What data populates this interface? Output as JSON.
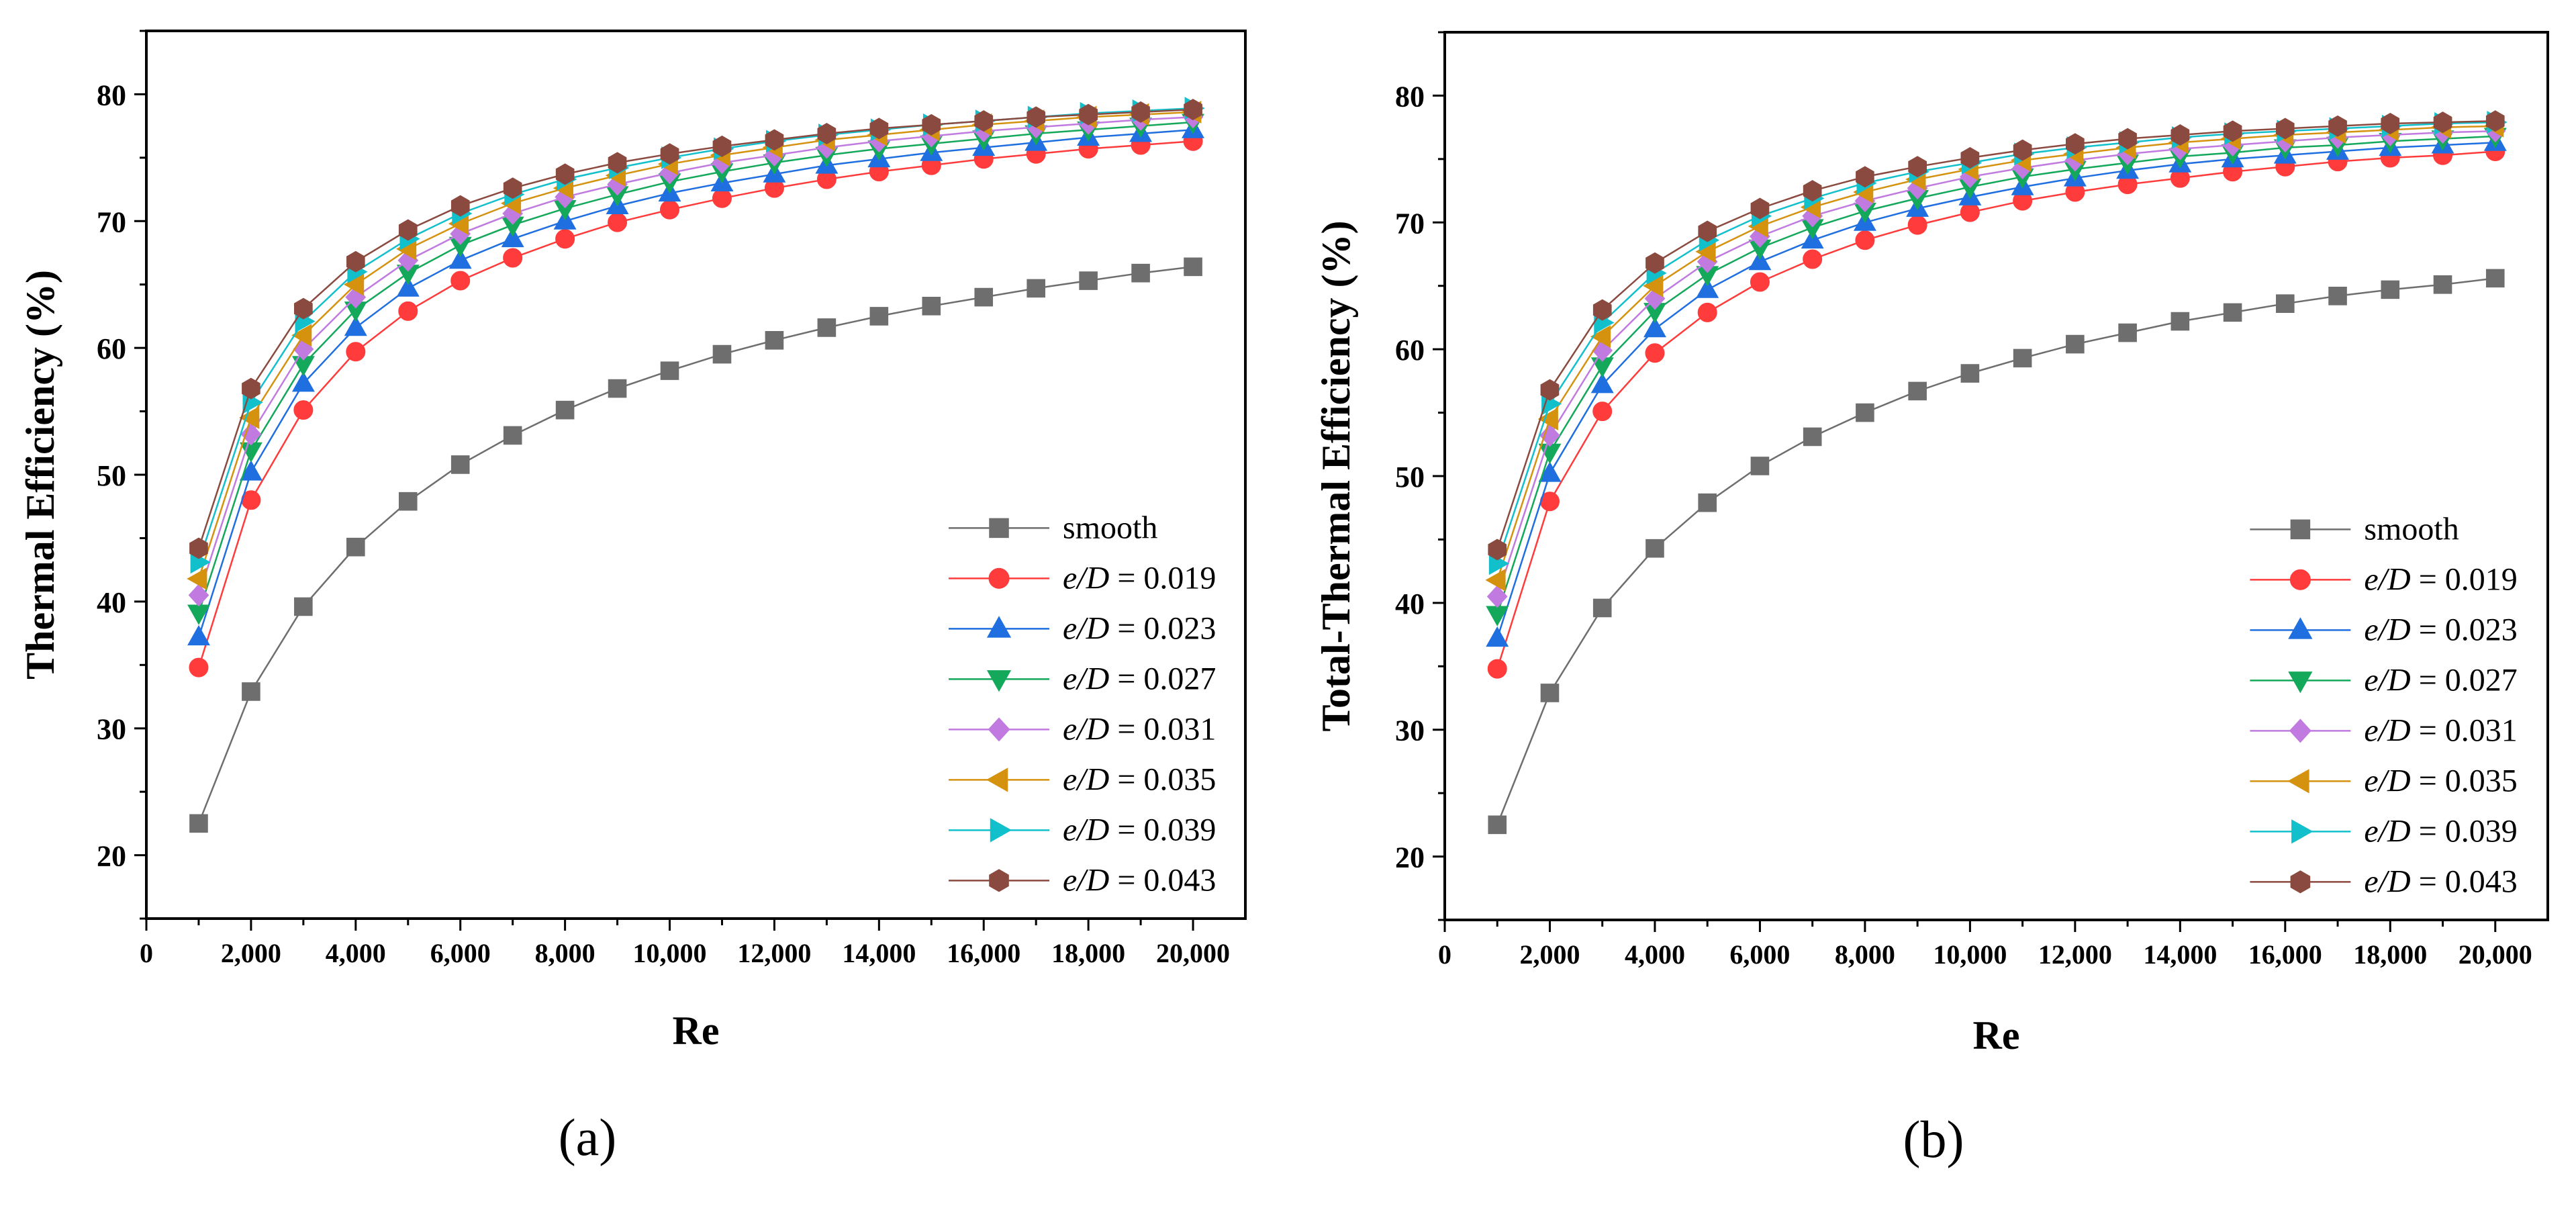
{
  "figure": {
    "panels": [
      "(a)",
      "(b)"
    ]
  },
  "chart_data": [
    {
      "type": "line",
      "panel_label": "(a)",
      "xlabel": "Re",
      "ylabel": "Thermal Efficiency (%)",
      "xlim": [
        0,
        21000
      ],
      "ylim": [
        15,
        85
      ],
      "xticks": [
        0,
        2000,
        4000,
        6000,
        8000,
        10000,
        12000,
        14000,
        16000,
        18000,
        20000
      ],
      "xtick_labels": [
        "0",
        "2,000",
        "4,000",
        "6,000",
        "8,000",
        "10,000",
        "12,000",
        "14,000",
        "16,000",
        "18,000",
        "20,000"
      ],
      "yticks": [
        20,
        30,
        40,
        50,
        60,
        70,
        80
      ],
      "ytick_labels": [
        "20",
        "30",
        "40",
        "50",
        "60",
        "70",
        "80"
      ],
      "grid": false,
      "legend_position": "bottom-right",
      "x": [
        1000,
        2000,
        3000,
        4000,
        5000,
        6000,
        7000,
        8000,
        9000,
        10000,
        11000,
        12000,
        13000,
        14000,
        15000,
        16000,
        17000,
        18000,
        19000,
        20000
      ],
      "series": [
        {
          "name": "smooth",
          "prefix": "smooth",
          "value": "",
          "color": "#6e6e6e",
          "marker": "square",
          "values": [
            22.5,
            32.9,
            39.6,
            44.3,
            47.9,
            50.8,
            53.1,
            55.1,
            56.8,
            58.2,
            59.5,
            60.6,
            61.6,
            62.5,
            63.3,
            64.0,
            64.7,
            65.3,
            65.9,
            66.4
          ]
        },
        {
          "name": "e/D = 0.019",
          "prefix": "e/D",
          "value": " = 0.019",
          "color": "#ff3b3b",
          "marker": "circle",
          "values": [
            34.8,
            48.0,
            55.1,
            59.7,
            62.9,
            65.3,
            67.1,
            68.6,
            69.9,
            70.9,
            71.8,
            72.6,
            73.3,
            73.9,
            74.4,
            74.9,
            75.3,
            75.7,
            76.0,
            76.3
          ]
        },
        {
          "name": "e/D = 0.023",
          "prefix": "e/D",
          "value": " = 0.023",
          "color": "#1f6fe0",
          "marker": "triangle-up",
          "values": [
            37.2,
            50.2,
            57.2,
            61.6,
            64.7,
            66.9,
            68.6,
            70.0,
            71.2,
            72.2,
            73.0,
            73.7,
            74.4,
            74.9,
            75.4,
            75.8,
            76.2,
            76.6,
            76.9,
            77.2
          ]
        },
        {
          "name": "e/D = 0.027",
          "prefix": "e/D",
          "value": " = 0.027",
          "color": "#14a85a",
          "marker": "triangle-down",
          "values": [
            39.1,
            51.9,
            58.7,
            63.0,
            65.9,
            68.1,
            69.7,
            71.0,
            72.1,
            73.1,
            73.9,
            74.6,
            75.2,
            75.7,
            76.1,
            76.5,
            76.9,
            77.2,
            77.5,
            77.8
          ]
        },
        {
          "name": "e/D = 0.031",
          "prefix": "e/D",
          "value": " = 0.031",
          "color": "#c07ae0",
          "marker": "diamond",
          "values": [
            40.5,
            53.2,
            59.9,
            64.0,
            66.9,
            69.0,
            70.6,
            71.9,
            72.9,
            73.8,
            74.6,
            75.2,
            75.8,
            76.3,
            76.7,
            77.1,
            77.4,
            77.7,
            78.0,
            78.2
          ]
        },
        {
          "name": "e/D = 0.035",
          "prefix": "e/D",
          "value": " = 0.035",
          "color": "#d4920f",
          "marker": "triangle-left",
          "values": [
            41.8,
            54.5,
            61.0,
            65.0,
            67.8,
            69.8,
            71.4,
            72.6,
            73.6,
            74.5,
            75.2,
            75.8,
            76.4,
            76.8,
            77.2,
            77.6,
            77.9,
            78.2,
            78.4,
            78.6
          ]
        },
        {
          "name": "e/D = 0.039",
          "prefix": "e/D",
          "value": " = 0.039",
          "color": "#12c0cc",
          "marker": "triangle-right",
          "values": [
            43.1,
            55.7,
            62.1,
            66.0,
            68.6,
            70.6,
            72.1,
            73.3,
            74.2,
            75.0,
            75.7,
            76.3,
            76.8,
            77.2,
            77.6,
            77.9,
            78.2,
            78.5,
            78.7,
            78.9
          ]
        },
        {
          "name": "e/D = 0.043",
          "prefix": "e/D",
          "value": " = 0.043",
          "color": "#8b4a3f",
          "marker": "hexagon",
          "values": [
            44.2,
            56.8,
            63.1,
            66.8,
            69.3,
            71.2,
            72.6,
            73.7,
            74.6,
            75.3,
            75.9,
            76.4,
            76.9,
            77.3,
            77.6,
            77.9,
            78.2,
            78.4,
            78.6,
            78.8
          ]
        }
      ]
    },
    {
      "type": "line",
      "panel_label": "(b)",
      "xlabel": "Re",
      "ylabel": "Total-Thermal Efficiency (%)",
      "xlim": [
        0,
        21000
      ],
      "ylim": [
        15,
        85
      ],
      "xticks": [
        0,
        2000,
        4000,
        6000,
        8000,
        10000,
        12000,
        14000,
        16000,
        18000,
        20000
      ],
      "xtick_labels": [
        "0",
        "2,000",
        "4,000",
        "6,000",
        "8,000",
        "10,000",
        "12,000",
        "14,000",
        "16,000",
        "18,000",
        "20,000"
      ],
      "yticks": [
        20,
        30,
        40,
        50,
        60,
        70,
        80
      ],
      "ytick_labels": [
        "20",
        "30",
        "40",
        "50",
        "60",
        "70",
        "80"
      ],
      "grid": false,
      "legend_position": "bottom-right",
      "x": [
        1000,
        2000,
        3000,
        4000,
        5000,
        6000,
        7000,
        8000,
        9000,
        10000,
        11000,
        12000,
        13000,
        14000,
        15000,
        16000,
        17000,
        18000,
        19000,
        20000
      ],
      "series": [
        {
          "name": "smooth",
          "prefix": "smooth",
          "value": "",
          "color": "#6e6e6e",
          "marker": "square",
          "values": [
            22.5,
            32.9,
            39.6,
            44.3,
            47.9,
            50.8,
            53.1,
            55.0,
            56.7,
            58.1,
            59.3,
            60.4,
            61.3,
            62.2,
            62.9,
            63.6,
            64.2,
            64.7,
            65.1,
            65.6
          ]
        },
        {
          "name": "e/D = 0.019",
          "prefix": "e/D",
          "value": " = 0.019",
          "color": "#ff3b3b",
          "marker": "circle",
          "values": [
            34.8,
            48.0,
            55.1,
            59.7,
            62.9,
            65.3,
            67.1,
            68.6,
            69.8,
            70.8,
            71.7,
            72.4,
            73.0,
            73.5,
            74.0,
            74.4,
            74.8,
            75.1,
            75.3,
            75.6
          ]
        },
        {
          "name": "e/D = 0.023",
          "prefix": "e/D",
          "value": " = 0.023",
          "color": "#1f6fe0",
          "marker": "triangle-up",
          "values": [
            37.2,
            50.2,
            57.2,
            61.6,
            64.7,
            66.9,
            68.6,
            70.0,
            71.1,
            72.0,
            72.8,
            73.5,
            74.1,
            74.6,
            75.0,
            75.3,
            75.6,
            75.9,
            76.1,
            76.3
          ]
        },
        {
          "name": "e/D = 0.027",
          "prefix": "e/D",
          "value": " = 0.027",
          "color": "#14a85a",
          "marker": "triangle-down",
          "values": [
            39.1,
            51.9,
            58.7,
            63.0,
            65.9,
            68.0,
            69.6,
            70.9,
            71.9,
            72.8,
            73.6,
            74.2,
            74.7,
            75.2,
            75.5,
            75.9,
            76.1,
            76.4,
            76.6,
            76.8
          ]
        },
        {
          "name": "e/D = 0.031",
          "prefix": "e/D",
          "value": " = 0.031",
          "color": "#c07ae0",
          "marker": "diamond",
          "values": [
            40.5,
            53.2,
            59.9,
            64.0,
            66.9,
            68.9,
            70.5,
            71.7,
            72.7,
            73.6,
            74.3,
            74.9,
            75.4,
            75.8,
            76.1,
            76.4,
            76.7,
            76.9,
            77.1,
            77.2
          ]
        },
        {
          "name": "e/D = 0.035",
          "prefix": "e/D",
          "value": " = 0.035",
          "color": "#d4920f",
          "marker": "triangle-left",
          "values": [
            41.8,
            54.5,
            61.0,
            65.0,
            67.7,
            69.7,
            71.2,
            72.4,
            73.4,
            74.2,
            74.9,
            75.4,
            75.9,
            76.3,
            76.6,
            76.9,
            77.1,
            77.3,
            77.5,
            77.6
          ]
        },
        {
          "name": "e/D = 0.039",
          "prefix": "e/D",
          "value": " = 0.039",
          "color": "#12c0cc",
          "marker": "triangle-right",
          "values": [
            43.1,
            55.7,
            62.1,
            66.0,
            68.6,
            70.5,
            71.9,
            73.1,
            74.0,
            74.7,
            75.4,
            75.9,
            76.3,
            76.7,
            77.0,
            77.2,
            77.4,
            77.6,
            77.8,
            77.9
          ]
        },
        {
          "name": "e/D = 0.043",
          "prefix": "e/D",
          "value": " = 0.043",
          "color": "#8b4a3f",
          "marker": "hexagon",
          "values": [
            44.2,
            56.8,
            63.1,
            66.8,
            69.3,
            71.1,
            72.5,
            73.6,
            74.4,
            75.1,
            75.7,
            76.2,
            76.6,
            76.9,
            77.2,
            77.4,
            77.6,
            77.8,
            77.9,
            78.0
          ]
        }
      ]
    }
  ]
}
